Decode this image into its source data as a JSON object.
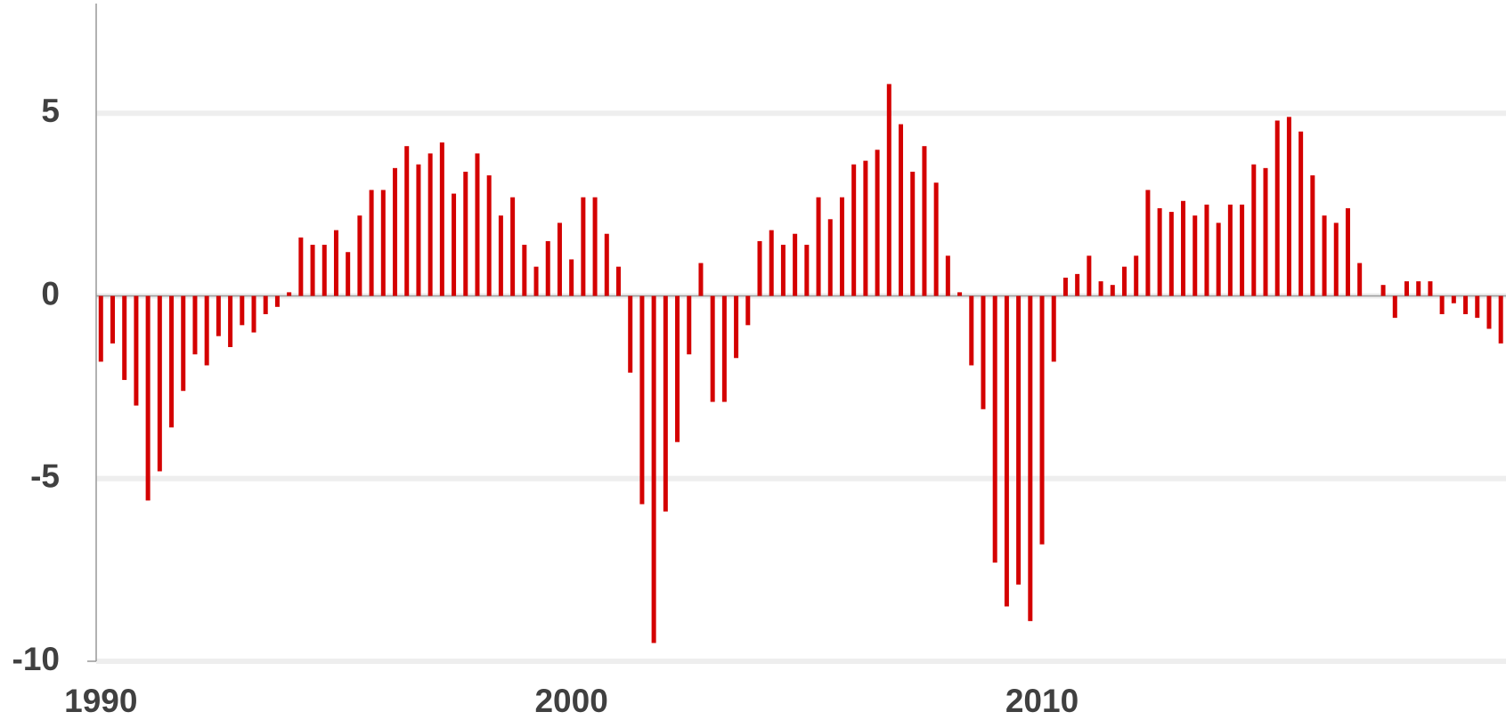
{
  "chart_data": {
    "type": "bar",
    "color": "#d40000",
    "grid": true,
    "x": [
      1990,
      1990.25,
      1990.5,
      1990.75,
      1991,
      1991.25,
      1991.5,
      1991.75,
      1992,
      1992.25,
      1992.5,
      1992.75,
      1993,
      1993.25,
      1993.5,
      1993.75,
      1994,
      1994.25,
      1994.5,
      1994.75,
      1995,
      1995.25,
      1995.5,
      1995.75,
      1996,
      1996.25,
      1996.5,
      1996.75,
      1997,
      1997.25,
      1997.5,
      1997.75,
      1998,
      1998.25,
      1998.5,
      1998.75,
      1999,
      1999.25,
      1999.5,
      1999.75,
      2000,
      2000.25,
      2000.5,
      2000.75,
      2001,
      2001.25,
      2001.5,
      2001.75,
      2002,
      2002.25,
      2002.5,
      2002.75,
      2003,
      2003.25,
      2003.5,
      2003.75,
      2004,
      2004.25,
      2004.5,
      2004.75,
      2005,
      2005.25,
      2005.5,
      2005.75,
      2006,
      2006.25,
      2006.5,
      2006.75,
      2007,
      2007.25,
      2007.5,
      2007.75,
      2008,
      2008.25,
      2008.5,
      2008.75,
      2009,
      2009.25,
      2009.5,
      2009.75,
      2010,
      2010.25,
      2010.5,
      2010.75,
      2011,
      2011.25,
      2011.5,
      2011.75,
      2012,
      2012.25,
      2012.5,
      2012.75,
      2013,
      2013.25,
      2013.5,
      2013.75,
      2014,
      2014.25,
      2014.5,
      2014.75,
      2015,
      2015.25,
      2015.5,
      2015.75,
      2016,
      2016.25,
      2016.5,
      2016.75,
      2017,
      2017.25,
      2017.5,
      2017.75,
      2018,
      2018.25,
      2018.5,
      2018.75,
      2019,
      2019.25,
      2019.5,
      2019.75
    ],
    "values": [
      -1.8,
      -1.3,
      -2.3,
      -3.0,
      -5.6,
      -4.8,
      -3.6,
      -2.6,
      -1.6,
      -1.9,
      -1.1,
      -1.4,
      -0.8,
      -1.0,
      -0.5,
      -0.3,
      0.1,
      1.6,
      1.4,
      1.4,
      1.8,
      1.2,
      2.2,
      2.9,
      2.9,
      3.5,
      4.1,
      3.6,
      3.9,
      4.2,
      2.8,
      3.4,
      3.9,
      3.3,
      2.2,
      2.7,
      1.4,
      0.8,
      1.5,
      2.0,
      1.0,
      2.7,
      2.7,
      1.7,
      0.8,
      -2.1,
      -5.7,
      -9.5,
      -5.9,
      -4.0,
      -1.6,
      0.9,
      -2.9,
      -2.9,
      -1.7,
      -0.8,
      1.5,
      1.8,
      1.4,
      1.7,
      1.4,
      2.7,
      2.1,
      2.7,
      3.6,
      3.7,
      4.0,
      5.8,
      4.7,
      3.4,
      4.1,
      3.1,
      1.1,
      0.1,
      -1.9,
      -3.1,
      -7.3,
      -8.5,
      -7.9,
      -8.9,
      -6.8,
      -1.8,
      0.5,
      0.6,
      1.1,
      0.4,
      0.3,
      0.8,
      1.1,
      2.9,
      2.4,
      2.3,
      2.6,
      2.2,
      2.5,
      2.0,
      2.5,
      2.5,
      3.6,
      3.5,
      4.8,
      4.9,
      4.5,
      3.3,
      2.2,
      2.0,
      2.4,
      0.9,
      0,
      0.3,
      -0.6,
      0.4,
      0.4,
      0.4,
      -0.5,
      -0.2,
      -0.5,
      -0.6,
      -0.9,
      -1.3
    ],
    "xlim": [
      1989.9,
      2019.86
    ],
    "xticks": [
      1990,
      2000,
      2010
    ],
    "ylim": [
      -10,
      8.1
    ],
    "yticks": [
      -10,
      -5,
      0,
      5
    ]
  }
}
